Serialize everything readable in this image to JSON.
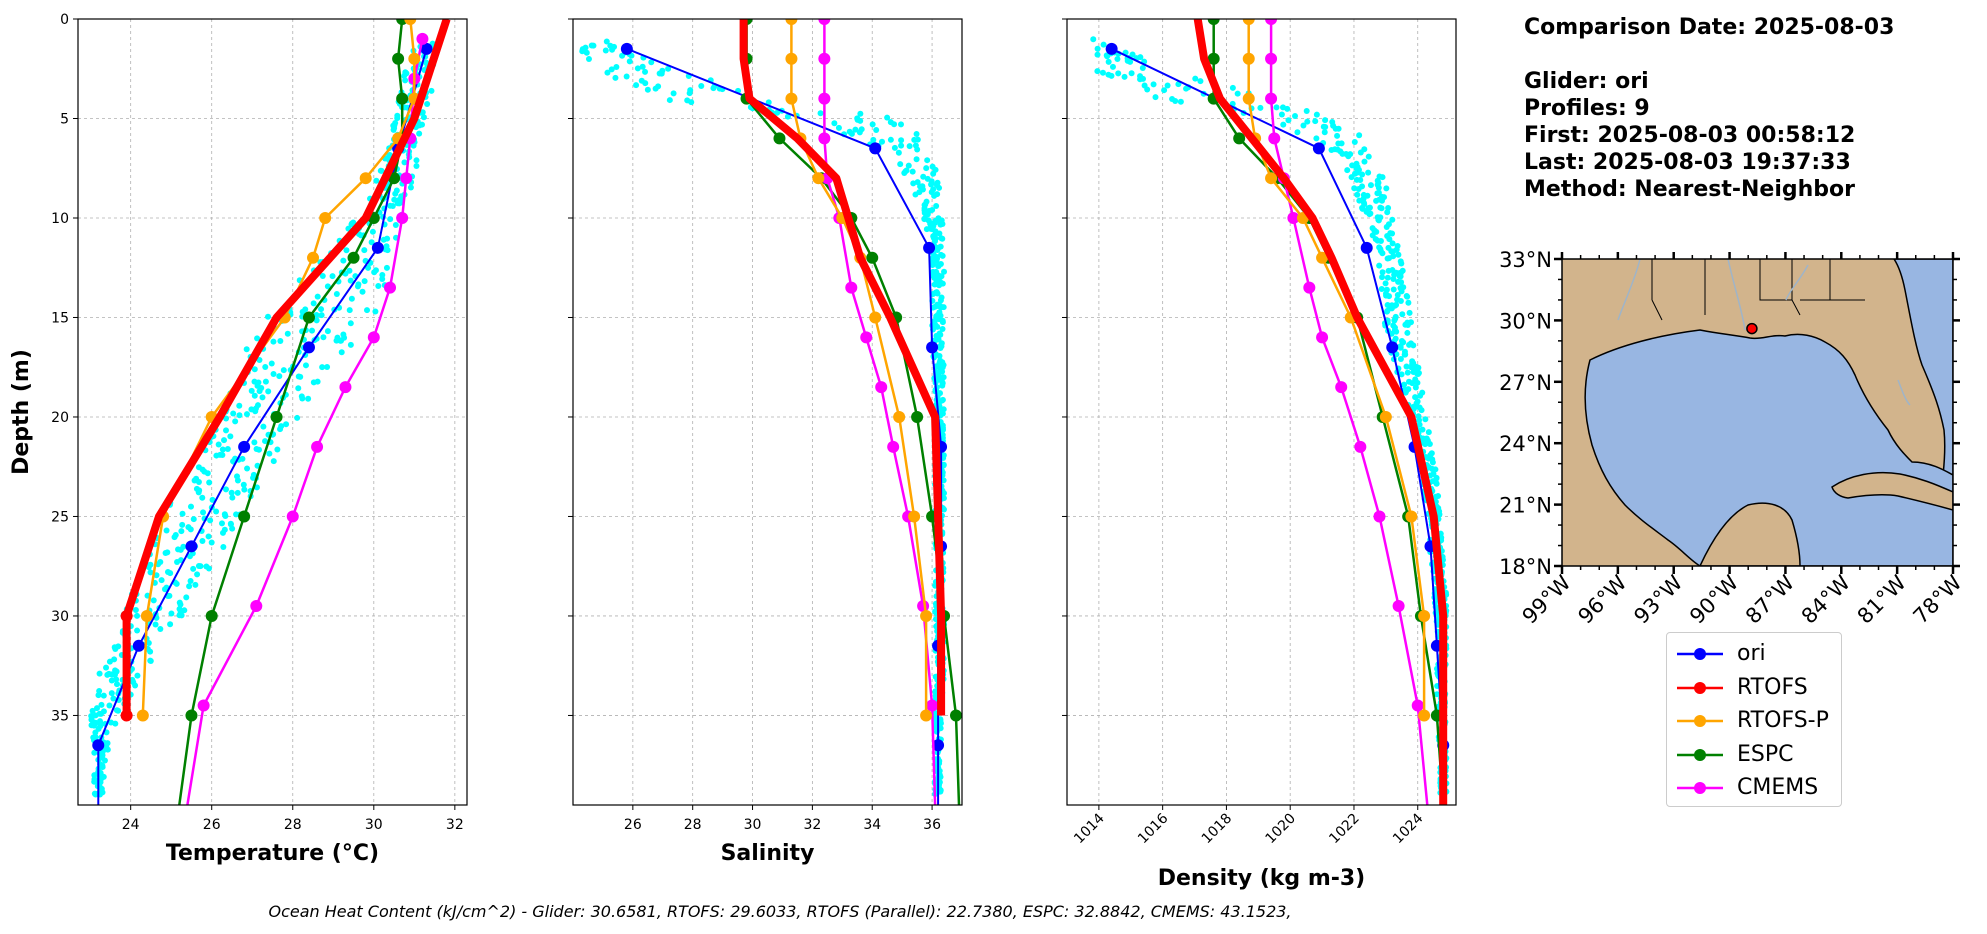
{
  "info": {
    "comparison_date": "Comparison Date: 2025-08-03",
    "glider": "Glider: ori",
    "profiles": "Profiles: 9",
    "first": "First: 2025-08-03 00:58:12",
    "last": "Last: 2025-08-03 19:37:33",
    "method": "Method: Nearest-Neighbor"
  },
  "footer": "Ocean Heat Content (kJ/cm^2) - Glider: 30.6581,  RTOFS: 29.6033,  RTOFS (Parallel): 22.7380,  ESPC: 32.8842,  CMEMS: 43.1523,",
  "colors": {
    "ori": "#0000ff",
    "RTOFS": "#ff0000",
    "RTOFS-P": "#ffa500",
    "ESPC": "#008000",
    "CMEMS": "#ff00ff",
    "glider_points": "#00ffff",
    "land": "#d2b48c",
    "water": "#98b6e2"
  },
  "legend": [
    {
      "key": "ori",
      "label": "ori"
    },
    {
      "key": "RTOFS",
      "label": "RTOFS"
    },
    {
      "key": "RTOFS-P",
      "label": "RTOFS-P"
    },
    {
      "key": "ESPC",
      "label": "ESPC"
    },
    {
      "key": "CMEMS",
      "label": "CMEMS"
    }
  ],
  "chart_data": [
    {
      "type": "line",
      "title": "",
      "xlabel": "Temperature (°C)",
      "ylabel": "Depth (m)",
      "xlim": [
        22.7,
        32.3
      ],
      "ylim": [
        39.5,
        0
      ],
      "xticks": [
        24,
        26,
        28,
        30,
        32
      ],
      "yticks": [
        0,
        5,
        10,
        15,
        20,
        25,
        30,
        35
      ],
      "grid": true,
      "scatter": {
        "name": "glider",
        "seed": 11,
        "band": [
          [
            1,
            31.0,
            31.6
          ],
          [
            3,
            30.7,
            31.5
          ],
          [
            5,
            30.5,
            31.3
          ],
          [
            7,
            30.2,
            31.1
          ],
          [
            9,
            29.9,
            30.9
          ],
          [
            11,
            29.2,
            30.6
          ],
          [
            13,
            28.2,
            30.4
          ],
          [
            15,
            27.3,
            30.0
          ],
          [
            17,
            26.7,
            29.3
          ],
          [
            19,
            26.3,
            28.6
          ],
          [
            21,
            25.8,
            27.9
          ],
          [
            23,
            25.3,
            27.3
          ],
          [
            25,
            24.8,
            26.8
          ],
          [
            27,
            24.4,
            26.2
          ],
          [
            29,
            24.0,
            25.6
          ],
          [
            31,
            23.6,
            25.0
          ],
          [
            33,
            23.2,
            24.3
          ],
          [
            35,
            23.0,
            23.7
          ],
          [
            37,
            23.1,
            23.4
          ],
          [
            39,
            23.1,
            23.3
          ]
        ]
      },
      "series": [
        {
          "name": "ori",
          "depth": [
            1.5,
            6.5,
            11.5,
            16.5,
            21.5,
            26.5,
            31.5,
            36.5,
            39.5
          ],
          "values": [
            31.3,
            30.6,
            30.1,
            28.4,
            26.8,
            25.5,
            24.2,
            23.2,
            23.2
          ]
        },
        {
          "name": "RTOFS",
          "depth": [
            0,
            5,
            10,
            15,
            20,
            25,
            30,
            35
          ],
          "values": [
            31.8,
            31.0,
            29.8,
            27.6,
            26.2,
            24.7,
            23.9,
            23.9
          ],
          "markers": "end"
        },
        {
          "name": "RTOFS-P",
          "depth": [
            0,
            2,
            4,
            6,
            8,
            10,
            12,
            15,
            20,
            25,
            30,
            35
          ],
          "values": [
            30.9,
            31.0,
            31.0,
            30.6,
            29.8,
            28.8,
            28.5,
            27.8,
            26.0,
            24.8,
            24.4,
            24.3
          ]
        },
        {
          "name": "ESPC",
          "depth": [
            0,
            2,
            4,
            6,
            8,
            10,
            12,
            15,
            20,
            25,
            30,
            35,
            39.5
          ],
          "values": [
            30.7,
            30.6,
            30.7,
            30.7,
            30.5,
            30.0,
            29.5,
            28.4,
            27.6,
            26.8,
            26.0,
            25.5,
            25.2
          ]
        },
        {
          "name": "CMEMS",
          "depth": [
            1,
            3,
            6,
            8,
            10,
            13.5,
            16,
            18.5,
            21.5,
            25,
            29.5,
            34.5,
            39.5
          ],
          "values": [
            31.2,
            31.0,
            30.9,
            30.8,
            30.7,
            30.4,
            30.0,
            29.3,
            28.6,
            28.0,
            27.1,
            25.8,
            25.4
          ]
        }
      ]
    },
    {
      "type": "line",
      "title": "",
      "xlabel": "Salinity",
      "ylabel": "",
      "xlim": [
        24.0,
        37.0
      ],
      "ylim": [
        39.5,
        0
      ],
      "xticks": [
        26,
        28,
        30,
        32,
        34,
        36
      ],
      "yticks": [
        0,
        5,
        10,
        15,
        20,
        25,
        30,
        35
      ],
      "grid": true,
      "scatter": {
        "name": "glider",
        "seed": 23,
        "band": [
          [
            1,
            24.2,
            25.0
          ],
          [
            2,
            24.3,
            26.5
          ],
          [
            3,
            24.8,
            28.5
          ],
          [
            4,
            26.5,
            30.5
          ],
          [
            5,
            31.0,
            35.0
          ],
          [
            6,
            33.5,
            35.8
          ],
          [
            7,
            34.8,
            36.2
          ],
          [
            9,
            35.5,
            36.3
          ],
          [
            11,
            35.9,
            36.4
          ],
          [
            13,
            36.0,
            36.4
          ],
          [
            15,
            36.0,
            36.4
          ],
          [
            17,
            36.0,
            36.4
          ],
          [
            19,
            36.1,
            36.4
          ],
          [
            21,
            36.1,
            36.4
          ],
          [
            23,
            36.1,
            36.4
          ],
          [
            25,
            36.1,
            36.4
          ],
          [
            27,
            36.1,
            36.4
          ],
          [
            29,
            36.1,
            36.4
          ],
          [
            31,
            36.1,
            36.4
          ],
          [
            33,
            36.1,
            36.4
          ],
          [
            35,
            36.1,
            36.3
          ],
          [
            37,
            36.1,
            36.3
          ],
          [
            39,
            36.1,
            36.3
          ]
        ]
      },
      "series": [
        {
          "name": "ori",
          "depth": [
            1.5,
            6.5,
            11.5,
            16.5,
            21.5,
            26.5,
            31.5,
            36.5,
            39.5
          ],
          "values": [
            25.8,
            34.1,
            35.9,
            36.0,
            36.3,
            36.3,
            36.2,
            36.2,
            36.2
          ]
        },
        {
          "name": "RTOFS",
          "depth": [
            0,
            2,
            4,
            6,
            8,
            10,
            12,
            15,
            20,
            25,
            30,
            35
          ],
          "values": [
            29.7,
            29.7,
            29.9,
            31.5,
            32.8,
            33.2,
            33.6,
            34.6,
            36.1,
            36.2,
            36.3,
            36.3
          ],
          "markers": "none"
        },
        {
          "name": "RTOFS-P",
          "depth": [
            0,
            2,
            4,
            6,
            8,
            10,
            12,
            15,
            20,
            25,
            30,
            35
          ],
          "values": [
            31.3,
            31.3,
            31.3,
            31.6,
            32.2,
            33.0,
            33.6,
            34.1,
            34.9,
            35.4,
            35.8,
            35.8
          ]
        },
        {
          "name": "ESPC",
          "depth": [
            0,
            2,
            4,
            6,
            8,
            10,
            12,
            15,
            20,
            25,
            30,
            35,
            39.5
          ],
          "values": [
            29.8,
            29.8,
            29.8,
            30.9,
            32.3,
            33.3,
            34.0,
            34.8,
            35.5,
            36.0,
            36.4,
            36.8,
            36.9
          ]
        },
        {
          "name": "CMEMS",
          "depth": [
            0,
            2,
            4,
            6,
            8,
            10,
            13.5,
            16,
            18.5,
            21.5,
            25,
            29.5,
            34.5,
            39.5
          ],
          "values": [
            32.4,
            32.4,
            32.4,
            32.4,
            32.5,
            32.9,
            33.3,
            33.8,
            34.3,
            34.7,
            35.2,
            35.7,
            36.0,
            36.1
          ]
        }
      ]
    },
    {
      "type": "line",
      "title": "",
      "xlabel": "Density (kg m-3)",
      "ylabel": "",
      "xlim": [
        1013.0,
        1025.2
      ],
      "ylim": [
        39.5,
        0
      ],
      "xticks": [
        1014,
        1016,
        1018,
        1020,
        1022,
        1024
      ],
      "yticks": [
        0,
        5,
        10,
        15,
        20,
        25,
        30,
        35
      ],
      "grid": true,
      "scatter": {
        "name": "glider",
        "seed": 37,
        "band": [
          [
            1,
            1013.4,
            1014.0
          ],
          [
            2,
            1013.6,
            1015.5
          ],
          [
            3,
            1014.0,
            1017.2
          ],
          [
            4,
            1015.8,
            1019.5
          ],
          [
            5,
            1019.2,
            1021.6
          ],
          [
            6,
            1020.6,
            1022.3
          ],
          [
            7,
            1021.6,
            1022.8
          ],
          [
            9,
            1022.1,
            1023.1
          ],
          [
            11,
            1022.6,
            1023.4
          ],
          [
            13,
            1022.8,
            1023.6
          ],
          [
            15,
            1022.9,
            1023.8
          ],
          [
            17,
            1023.2,
            1024.0
          ],
          [
            19,
            1023.6,
            1024.2
          ],
          [
            21,
            1023.9,
            1024.4
          ],
          [
            23,
            1024.1,
            1024.6
          ],
          [
            25,
            1024.3,
            1024.7
          ],
          [
            27,
            1024.4,
            1024.8
          ],
          [
            29,
            1024.5,
            1024.9
          ],
          [
            31,
            1024.6,
            1024.9
          ],
          [
            33,
            1024.6,
            1024.9
          ],
          [
            35,
            1024.6,
            1024.9
          ],
          [
            37,
            1024.7,
            1024.9
          ],
          [
            39,
            1024.7,
            1024.9
          ]
        ]
      },
      "series": [
        {
          "name": "ori",
          "depth": [
            1.5,
            6.5,
            11.5,
            16.5,
            21.5,
            26.5,
            31.5,
            36.5,
            39.5
          ],
          "values": [
            1014.4,
            1020.9,
            1022.4,
            1023.2,
            1023.9,
            1024.4,
            1024.6,
            1024.8,
            1024.8
          ]
        },
        {
          "name": "RTOFS",
          "depth": [
            0,
            2,
            4,
            6,
            8,
            10,
            12,
            15,
            20,
            25,
            30,
            35,
            39.5
          ],
          "values": [
            1017.1,
            1017.3,
            1017.8,
            1018.8,
            1019.8,
            1020.7,
            1021.3,
            1022.1,
            1023.8,
            1024.5,
            1024.8,
            1024.8,
            1024.8
          ],
          "markers": "none"
        },
        {
          "name": "RTOFS-P",
          "depth": [
            0,
            2,
            4,
            6,
            8,
            10,
            12,
            15,
            20,
            25,
            30,
            35
          ],
          "values": [
            1018.7,
            1018.7,
            1018.7,
            1018.9,
            1019.4,
            1020.4,
            1021.0,
            1021.9,
            1023.0,
            1023.8,
            1024.2,
            1024.2
          ]
        },
        {
          "name": "ESPC",
          "depth": [
            0,
            2,
            4,
            6,
            8,
            10,
            12,
            15,
            20,
            25,
            30,
            35,
            39.5
          ],
          "values": [
            1017.6,
            1017.6,
            1017.6,
            1018.4,
            1019.6,
            1020.6,
            1021.2,
            1022.1,
            1022.9,
            1023.7,
            1024.1,
            1024.6,
            1024.8
          ]
        },
        {
          "name": "CMEMS",
          "depth": [
            0,
            2,
            4,
            6,
            8,
            10,
            13.5,
            16,
            18.5,
            21.5,
            25,
            29.5,
            34.5,
            39.5
          ],
          "values": [
            1019.4,
            1019.4,
            1019.4,
            1019.5,
            1019.8,
            1020.1,
            1020.6,
            1021.0,
            1021.6,
            1022.2,
            1022.8,
            1023.4,
            1024.0,
            1024.3
          ]
        }
      ]
    },
    {
      "type": "map",
      "title": "",
      "lon_range": [
        -99,
        -78
      ],
      "lat_range": [
        18,
        33
      ],
      "xticks": [
        "99°W",
        "96°W",
        "93°W",
        "90°W",
        "87°W",
        "84°W",
        "81°W",
        "78°W"
      ],
      "yticks": [
        "33°N",
        "30°N",
        "27°N",
        "24°N",
        "21°N",
        "18°N"
      ],
      "glider_position": {
        "lon": -88.8,
        "lat": 29.6
      }
    }
  ]
}
